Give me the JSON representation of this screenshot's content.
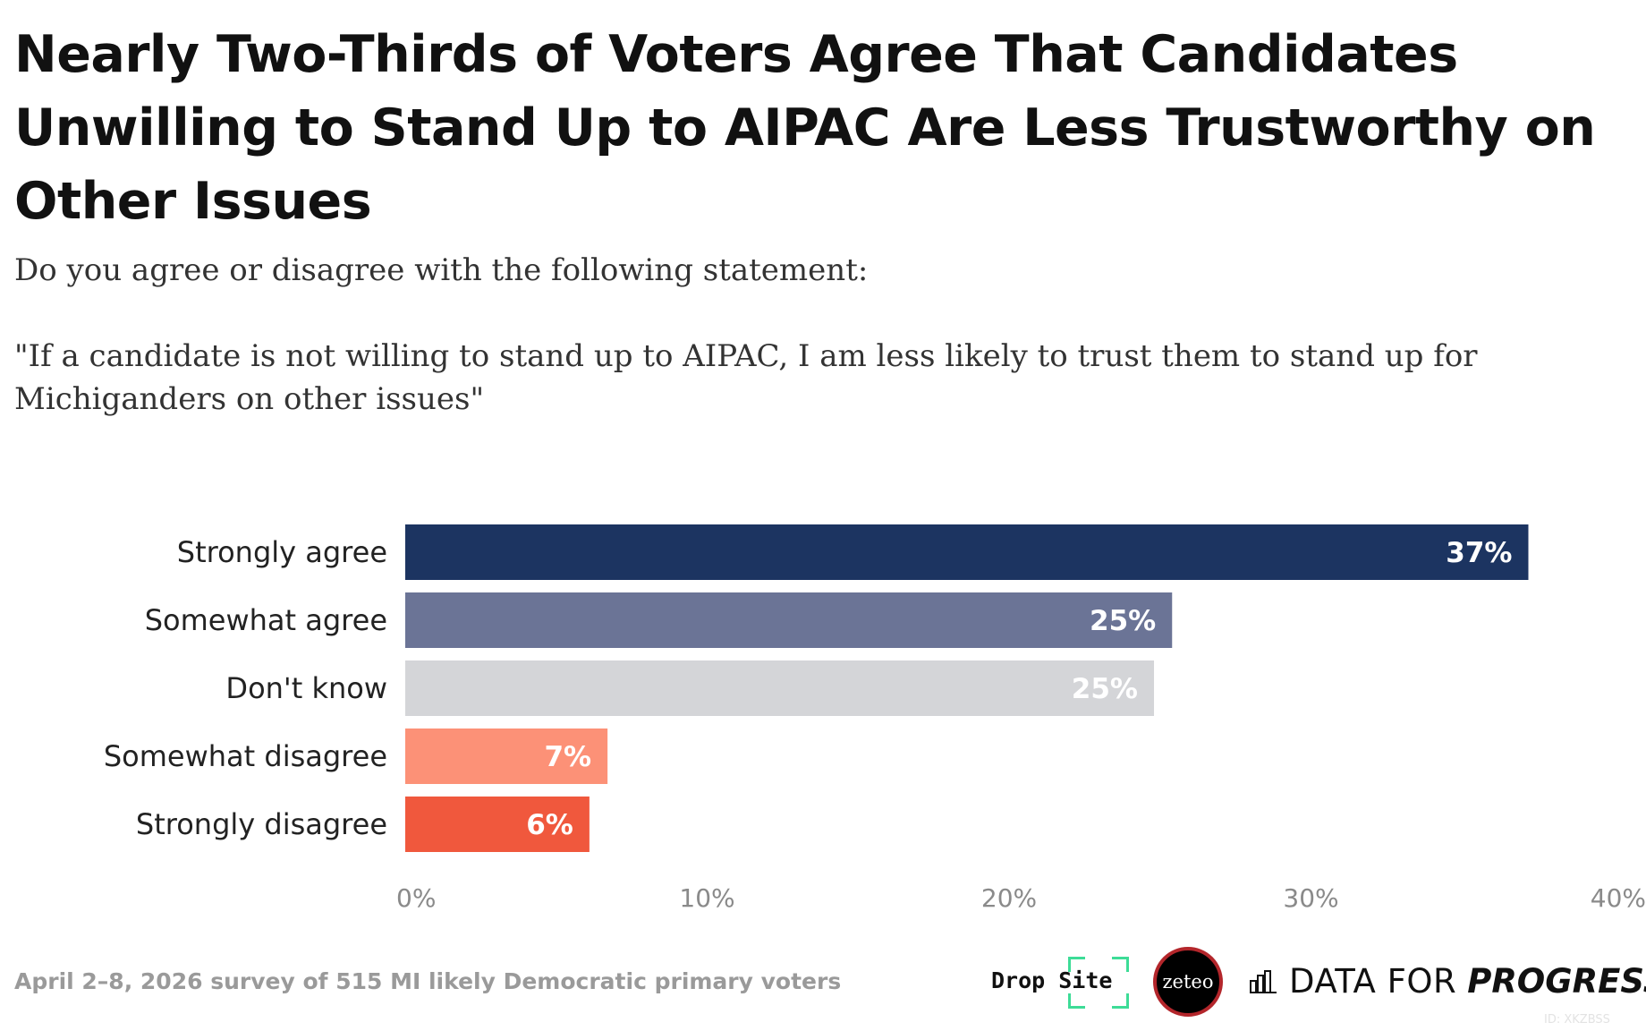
{
  "title": "Nearly Two-Thirds of Voters Agree That Candidates Unwilling to Stand Up to AIPAC Are Less Trustworthy on Other Issues",
  "subtitle": {
    "question": "Do you agree or disagree with the following statement:",
    "statement": "\"If a candidate is not willing to stand up to AIPAC, I am less likely to trust them to stand up for Michiganders on other issues\""
  },
  "source": "April 2–8, 2026 survey of 515 MI likely Democratic primary voters",
  "logos": {
    "dropsite": "Drop Site",
    "zeteo": "zeteo",
    "dfp_regular": "DATA FOR",
    "dfp_bold": "PROGRESS"
  },
  "chart_id": "ID: XKZBSS",
  "chart_data": {
    "type": "bar",
    "orientation": "horizontal",
    "categories": [
      "Strongly agree",
      "Somewhat agree",
      "Don't know",
      "Somewhat disagree",
      "Strongly disagree"
    ],
    "values": [
      37.2,
      25.4,
      24.8,
      6.7,
      6.1
    ],
    "value_labels": [
      "37%",
      "25%",
      "25%",
      "7%",
      "6%"
    ],
    "colors": [
      "#1c3461",
      "#6b7496",
      "#d4d5d8",
      "#fc9177",
      "#f0583d"
    ],
    "xlim": [
      0,
      40
    ],
    "ticks": [
      0,
      10,
      20,
      30,
      40
    ],
    "tick_labels": [
      "0%",
      "10%",
      "20%",
      "30%",
      "40%"
    ],
    "xlabel": "",
    "ylabel": "",
    "grid": false,
    "legend": "none"
  }
}
